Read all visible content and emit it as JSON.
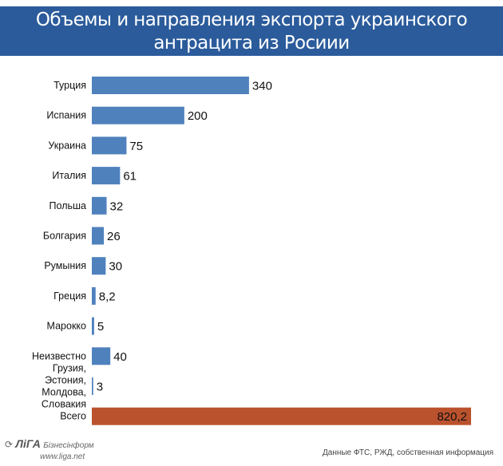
{
  "chart_data": {
    "type": "bar",
    "orientation": "horizontal",
    "title": "Объемы и направления экспорта украинского антрацита из Росиии",
    "categories": [
      "Турция",
      "Испания",
      "Украина",
      "Италия",
      "Польша",
      "Болгария",
      "Румыния",
      "Греция",
      "Марокко",
      "Неизвестно",
      "Грузия, Эстония, Молдова, Словакия",
      "Всего"
    ],
    "values": [
      340,
      200,
      75,
      61,
      32,
      26,
      30,
      8.2,
      5,
      40,
      3,
      820.2
    ],
    "value_labels": [
      "340",
      "200",
      "75",
      "61",
      "32",
      "26",
      "30",
      "8,2",
      "5",
      "40",
      "3",
      "820,2"
    ],
    "xlim": [
      0,
      820.2
    ],
    "grid": false,
    "colors": {
      "bar": "#4f81bd",
      "total": "#bb522e",
      "title_bg": "#2b5b9b"
    }
  },
  "logo": {
    "brand": "ЛіГА",
    "name": "Бізнесінформ",
    "url": "www.liga.net"
  },
  "source": "Данные ФТС, РЖД, собственная информация"
}
